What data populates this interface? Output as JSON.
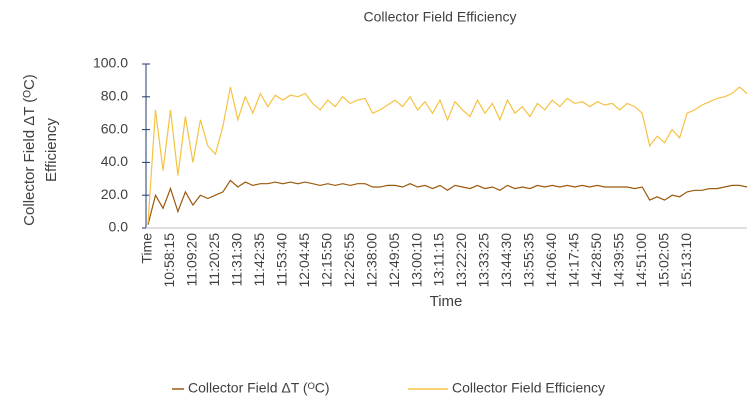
{
  "chart_data": {
    "type": "line",
    "title": "Collector Field Efficiency",
    "x_label": "Time",
    "y_label_lines": [
      "Collector Field ΔT (ᴼC)",
      "Efficiency"
    ],
    "categories": [
      "Time",
      null,
      null,
      "10:58:15",
      null,
      null,
      "11:09:20",
      null,
      null,
      "11:20:25",
      null,
      null,
      "11:31:30",
      null,
      null,
      "11:42:35",
      null,
      null,
      "11:53:40",
      null,
      null,
      "12:04:45",
      null,
      null,
      "12:15:50",
      null,
      null,
      "12:26:55",
      null,
      null,
      "12:38:00",
      null,
      null,
      "12:49:05",
      null,
      null,
      "13:00:10",
      null,
      null,
      "13:11:15",
      null,
      null,
      "13:22:20",
      null,
      null,
      "13:33:25",
      null,
      null,
      "13:44:30",
      null,
      null,
      "13:55:35",
      null,
      null,
      "14:06:40",
      null,
      null,
      "14:17:45",
      null,
      null,
      "14:28:50",
      null,
      null,
      "14:39:55",
      null,
      null,
      "14:51:00",
      null,
      null,
      "15:02:05",
      null,
      null,
      "15:13:10",
      null,
      null,
      null,
      null,
      null,
      null,
      null,
      null
    ],
    "series": [
      {
        "name": "Collector Field ΔT (ᴼC)",
        "color": "#9c5a0c",
        "values": [
          2,
          20,
          12,
          24,
          10,
          22,
          14,
          20,
          18,
          20,
          22,
          29,
          25,
          28,
          26,
          27,
          27,
          28,
          27,
          28,
          27,
          28,
          27,
          26,
          27,
          26,
          27,
          26,
          27,
          27,
          25,
          25,
          26,
          26,
          25,
          27,
          25,
          26,
          24,
          26,
          23,
          26,
          25,
          24,
          26,
          24,
          25,
          23,
          26,
          24,
          25,
          24,
          26,
          25,
          26,
          25,
          26,
          25,
          26,
          25,
          26,
          25,
          25,
          25,
          25,
          24,
          25,
          17,
          19,
          17,
          20,
          19,
          22,
          23,
          23,
          24,
          24,
          25,
          26,
          26,
          25
        ]
      },
      {
        "name": "Collector Field Efficiency",
        "color": "#f5c242",
        "values": [
          3,
          72,
          35,
          72,
          32,
          68,
          40,
          66,
          50,
          45,
          62,
          86,
          66,
          80,
          70,
          82,
          74,
          81,
          78,
          81,
          80,
          82,
          76,
          72,
          78,
          74,
          80,
          76,
          78,
          79,
          70,
          72,
          75,
          78,
          74,
          80,
          72,
          77,
          70,
          78,
          66,
          77,
          72,
          68,
          78,
          70,
          76,
          66,
          78,
          70,
          74,
          68,
          76,
          72,
          78,
          74,
          79,
          76,
          77,
          74,
          77,
          75,
          76,
          72,
          76,
          74,
          70,
          50,
          56,
          52,
          60,
          55,
          70,
          72,
          75,
          77,
          79,
          80,
          82,
          86,
          82
        ]
      }
    ],
    "ylim": [
      0,
      100
    ],
    "yticks": [
      {
        "value": 0,
        "label": "0.0"
      },
      {
        "value": 20,
        "label": "20.0"
      },
      {
        "value": 40,
        "label": "40.0"
      },
      {
        "value": 60,
        "label": "60.0"
      },
      {
        "value": 80,
        "label": "80.0"
      },
      {
        "value": 100,
        "label": "100.0"
      }
    ],
    "legend": "bottom"
  }
}
